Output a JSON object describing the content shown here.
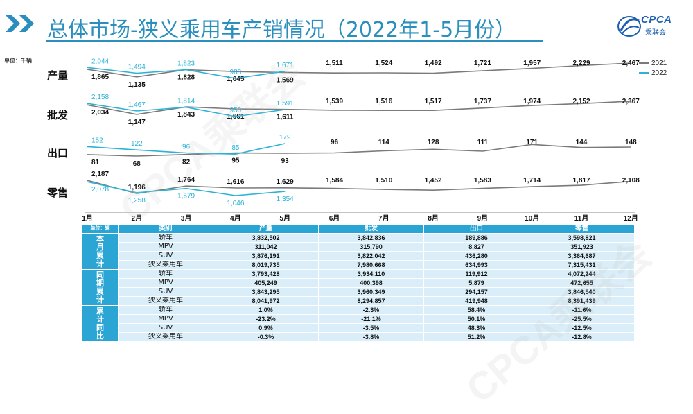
{
  "header": {
    "title": "总体市场-狭义乘用车产销情况（2022年1-5月份）",
    "logo_text": "CPCA",
    "logo_sub": "乘联会"
  },
  "colors": {
    "accent": "#2a8fbd",
    "series_2021": "#7a7a7a",
    "series_2022": "#2bb3d6",
    "table_header": "#29a5d5",
    "table_body": "#d9eef8"
  },
  "watermark": "CPCA乘联会",
  "chart_data": {
    "type": "line",
    "unit": "单位：千辆",
    "categories": [
      "1月",
      "2月",
      "3月",
      "4月",
      "5月",
      "6月",
      "7月",
      "8月",
      "9月",
      "10月",
      "11月",
      "12月"
    ],
    "legend": [
      "2021",
      "2022"
    ],
    "legend_position": "top-right",
    "panels": [
      {
        "label": "产量",
        "series": [
          {
            "name": "2021",
            "values": [
              1865,
              1135,
              1828,
              1645,
              1569,
              1511,
              1524,
              1492,
              1721,
              1957,
              2229,
              2467
            ]
          },
          {
            "name": "2022",
            "values": [
              2044,
              1494,
              1823,
              988,
              1671
            ]
          }
        ]
      },
      {
        "label": "批发",
        "series": [
          {
            "name": "2021",
            "values": [
              2034,
              1147,
              1843,
              1661,
              1611,
              1539,
              1516,
              1517,
              1737,
              1974,
              2152,
              2367
            ]
          },
          {
            "name": "2022",
            "values": [
              2158,
              1467,
              1814,
              950,
              1591
            ]
          }
        ]
      },
      {
        "label": "出口",
        "series": [
          {
            "name": "2021",
            "values": [
              81,
              68,
              82,
              95,
              93,
              96,
              114,
              128,
              111,
              171,
              144,
              148
            ]
          },
          {
            "name": "2022",
            "values": [
              152,
              122,
              96,
              85,
              179
            ]
          }
        ]
      },
      {
        "label": "零售",
        "series": [
          {
            "name": "2021",
            "values": [
              2187,
              1196,
              1764,
              1616,
              1629,
              1584,
              1510,
              1452,
              1583,
              1714,
              1817,
              2108
            ]
          },
          {
            "name": "2022",
            "values": [
              2078,
              1258,
              1579,
              1046,
              1354
            ]
          }
        ]
      }
    ]
  },
  "table": {
    "unit": "单位：辆",
    "headers": [
      "类别",
      "产量",
      "批发",
      "出口",
      "零售"
    ],
    "groups": [
      {
        "label": "本月累计",
        "rows": [
          [
            "轿车",
            "3,832,502",
            "3,842,836",
            "189,886",
            "3,598,821"
          ],
          [
            "MPV",
            "311,042",
            "315,790",
            "8,827",
            "351,923"
          ],
          [
            "SUV",
            "3,876,191",
            "3,822,042",
            "436,280",
            "3,364,687"
          ],
          [
            "狭义乘用车",
            "8,019,735",
            "7,980,668",
            "634,993",
            "7,315,431"
          ]
        ]
      },
      {
        "label": "同期累计",
        "rows": [
          [
            "轿车",
            "3,793,428",
            "3,934,110",
            "119,912",
            "4,072,244"
          ],
          [
            "MPV",
            "405,249",
            "400,398",
            "5,879",
            "472,655"
          ],
          [
            "SUV",
            "3,843,295",
            "3,960,349",
            "294,157",
            "3,846,540"
          ],
          [
            "狭义乘用车",
            "8,041,972",
            "8,294,857",
            "419,948",
            "8,391,439"
          ]
        ]
      },
      {
        "label": "累计同比",
        "rows": [
          [
            "轿车",
            "1.0%",
            "-2.3%",
            "58.4%",
            "-11.6%"
          ],
          [
            "MPV",
            "-23.2%",
            "-21.1%",
            "50.1%",
            "-25.5%"
          ],
          [
            "SUV",
            "0.9%",
            "-3.5%",
            "48.3%",
            "-12.5%"
          ],
          [
            "狭义乘用车",
            "-0.3%",
            "-3.8%",
            "51.2%",
            "-12.8%"
          ]
        ]
      }
    ]
  }
}
